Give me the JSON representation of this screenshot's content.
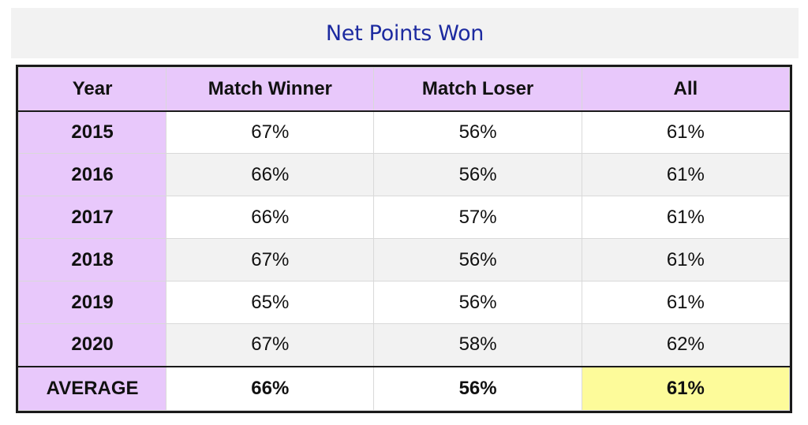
{
  "title": "Net Points Won",
  "table": {
    "headers": [
      "Year",
      "Match Winner",
      "Match Loser",
      "All"
    ],
    "rows": [
      {
        "year": "2015",
        "winner": "67%",
        "loser": "56%",
        "all": "61%"
      },
      {
        "year": "2016",
        "winner": "66%",
        "loser": "56%",
        "all": "61%"
      },
      {
        "year": "2017",
        "winner": "66%",
        "loser": "57%",
        "all": "61%"
      },
      {
        "year": "2018",
        "winner": "67%",
        "loser": "56%",
        "all": "61%"
      },
      {
        "year": "2019",
        "winner": "65%",
        "loser": "56%",
        "all": "61%"
      },
      {
        "year": "2020",
        "winner": "67%",
        "loser": "58%",
        "all": "62%"
      }
    ],
    "footer": {
      "label": "AVERAGE",
      "winner": "66%",
      "loser": "56%",
      "all": "61%"
    }
  },
  "colors": {
    "title_text": "#1c2aa0",
    "header_bg": "#e8c8fb",
    "highlight_bg": "#fdfb9a",
    "alt_row_bg": "#f2f2f2"
  }
}
